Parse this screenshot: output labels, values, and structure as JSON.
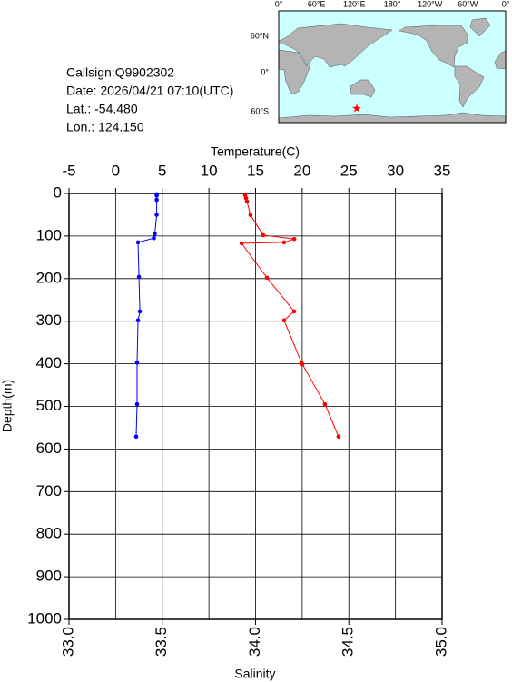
{
  "info": {
    "callsign": "Callsign:Q9902302",
    "date": "Date:  2026/04/21 07:10(UTC)",
    "lat": "Lat.:  -54.480",
    "lon": "Lon.:  124.150"
  },
  "map": {
    "lon_labels": [
      "0°",
      "60°E",
      "120°E",
      "180°",
      "120°W",
      "60°W",
      "0°"
    ],
    "lat_labels": [
      "60°N",
      "0°",
      "60°S"
    ]
  },
  "chart_data": {
    "type": "profile",
    "xlabel": "Temperature(C)",
    "x2label": "Salinity",
    "ylabel": "Depth(m)",
    "xlim": [
      -5,
      35
    ],
    "xticks": [
      -5,
      0,
      5,
      10,
      15,
      20,
      25,
      30,
      35
    ],
    "x2lim": [
      33,
      35
    ],
    "x2ticks": [
      {
        "value": 33,
        "label": "33.0"
      },
      33.5,
      {
        "value": 34,
        "label": "34.0"
      },
      34.5,
      {
        "value": 35,
        "label": "35.0"
      }
    ],
    "ylim": [
      0,
      1000
    ],
    "yticks": [
      0,
      100,
      200,
      300,
      400,
      500,
      600,
      700,
      800,
      900,
      1000
    ],
    "grid": true,
    "series": [
      {
        "color": "#0000ff",
        "axis": "x",
        "depth": [
          2,
          5,
          15,
          50,
          95,
          105,
          115,
          196,
          277,
          298,
          397,
          495,
          571
        ],
        "values": [
          4.4,
          4.4,
          4.4,
          4.4,
          4.2,
          4.1,
          2.4,
          2.5,
          2.6,
          2.4,
          2.3,
          2.3,
          2.2
        ]
      },
      {
        "color": "#ff0000",
        "axis": "x2",
        "depth": [
          4,
          11,
          19,
          51,
          98,
          107,
          115,
          117,
          198,
          277,
          298,
          397,
          401,
          495,
          571
        ],
        "values": [
          33.944,
          33.949,
          33.954,
          33.973,
          34.041,
          34.207,
          34.153,
          33.925,
          34.061,
          34.207,
          34.153,
          34.246,
          34.251,
          34.372,
          34.445
        ]
      }
    ]
  }
}
